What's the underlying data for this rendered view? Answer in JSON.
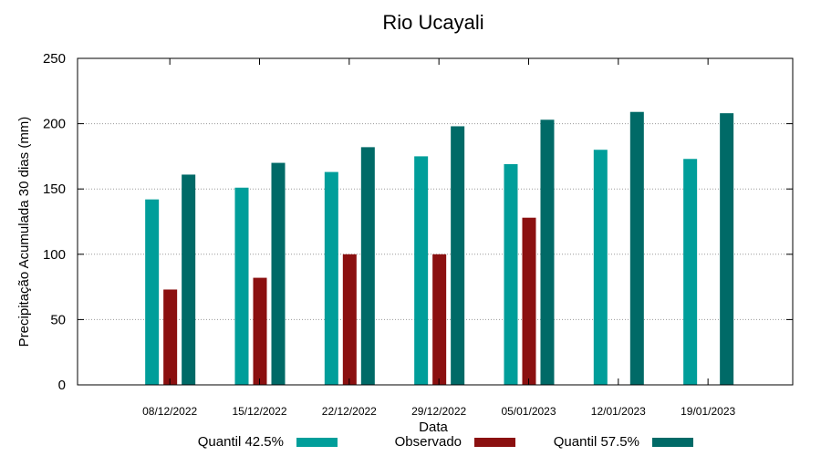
{
  "chart_data": {
    "type": "bar",
    "title": "Rio Ucayali",
    "xlabel": "Data",
    "ylabel": "Precipitação Acumulada 30 dias (mm)",
    "ylim": [
      0,
      250
    ],
    "yticks": [
      0,
      50,
      100,
      150,
      200,
      250
    ],
    "grid": true,
    "legend_position": "bottom",
    "categories": [
      "08/12/2022",
      "15/12/2022",
      "22/12/2022",
      "29/12/2022",
      "05/01/2023",
      "12/01/2023",
      "19/01/2023"
    ],
    "series": [
      {
        "name": "Quantil 42.5%",
        "color": "#009e9a",
        "values": [
          142,
          151,
          163,
          175,
          169,
          180,
          173
        ]
      },
      {
        "name": "Observado",
        "color": "#8b1010",
        "values": [
          73,
          82,
          100,
          100,
          128,
          null,
          null
        ]
      },
      {
        "name": "Quantil 57.5%",
        "color": "#006a67",
        "values": [
          161,
          170,
          182,
          198,
          203,
          209,
          208
        ]
      }
    ]
  }
}
